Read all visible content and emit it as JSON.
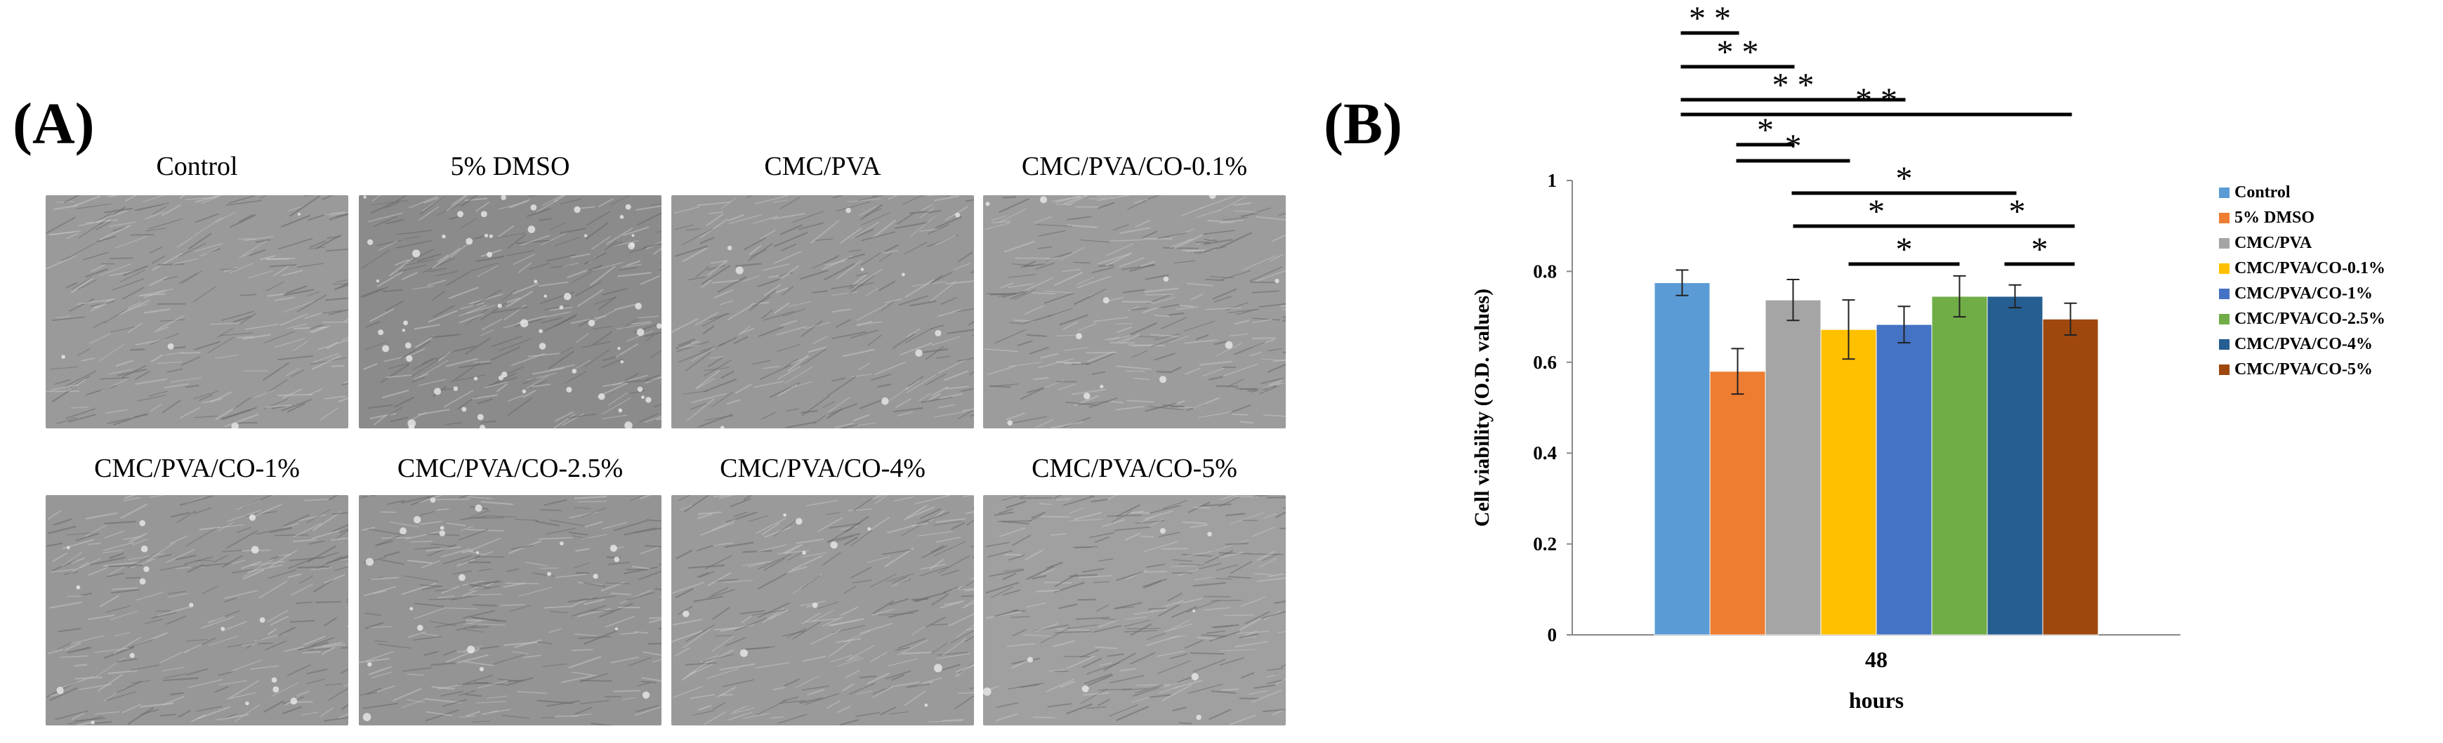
{
  "panel_a": {
    "label": "(A)",
    "images": [
      {
        "caption": "Control",
        "tone": "#9a9a9a",
        "debris": 4
      },
      {
        "caption": "5% DMSO",
        "tone": "#8b8b8b",
        "debris": 60
      },
      {
        "caption": "CMC/PVA",
        "tone": "#989898",
        "debris": 10
      },
      {
        "caption": "CMC/PVA/CO-0.1%",
        "tone": "#9c9c9c",
        "debris": 12
      },
      {
        "caption": "CMC/PVA/CO-1%",
        "tone": "#979797",
        "debris": 18
      },
      {
        "caption": "CMC/PVA/CO-2.5%",
        "tone": "#949494",
        "debris": 22
      },
      {
        "caption": "CMC/PVA/CO-4%",
        "tone": "#9a9a9a",
        "debris": 10
      },
      {
        "caption": "CMC/PVA/CO-5%",
        "tone": "#a0a0a0",
        "debris": 8
      }
    ]
  },
  "panel_b": {
    "label": "(B)"
  },
  "chart_data": {
    "type": "bar",
    "categories": [
      "48"
    ],
    "xlabel": "hours",
    "ylabel": "Cell viability (O.D. values)",
    "ylim": [
      0,
      1
    ],
    "yticks": [
      "0",
      "0.2",
      "0.4",
      "0.6",
      "0.8",
      "1"
    ],
    "legend_position": "right",
    "series": [
      {
        "name": "Control",
        "value": 0.775,
        "error": 0.028,
        "color": "#5B9BD5"
      },
      {
        "name": "5% DMSO",
        "value": 0.58,
        "error": 0.05,
        "color": "#ED7D31"
      },
      {
        "name": "CMC/PVA",
        "value": 0.737,
        "error": 0.045,
        "color": "#A5A5A5"
      },
      {
        "name": "CMC/PVA/CO-0.1%",
        "value": 0.672,
        "error": 0.065,
        "color": "#FFC000"
      },
      {
        "name": "CMC/PVA/CO-1%",
        "value": 0.683,
        "error": 0.04,
        "color": "#4472C4"
      },
      {
        "name": "CMC/PVA/CO-2.5%",
        "value": 0.745,
        "error": 0.045,
        "color": "#70AD47"
      },
      {
        "name": "CMC/PVA/CO-4%",
        "value": 0.745,
        "error": 0.025,
        "color": "#255E91"
      },
      {
        "name": "CMC/PVA/CO-5%",
        "value": 0.695,
        "error": 0.035,
        "color": "#9E480E"
      }
    ],
    "significance": [
      {
        "from": 0,
        "to": 1,
        "label": "* *"
      },
      {
        "from": 0,
        "to": 2,
        "label": "* *"
      },
      {
        "from": 0,
        "to": 4,
        "label": "* *"
      },
      {
        "from": 0,
        "to": 7,
        "label": "* *"
      },
      {
        "from": 1,
        "to": 2,
        "label": "*"
      },
      {
        "from": 1,
        "to": 3,
        "label": "*"
      },
      {
        "from": 2,
        "to": 6,
        "label": "*"
      },
      {
        "from": 2,
        "to": 5,
        "label": "*"
      },
      {
        "from": 5,
        "to": 7,
        "label": "*"
      },
      {
        "from": 3,
        "to": 5,
        "label": "*"
      },
      {
        "from": 6,
        "to": 7,
        "label": "*"
      }
    ]
  }
}
